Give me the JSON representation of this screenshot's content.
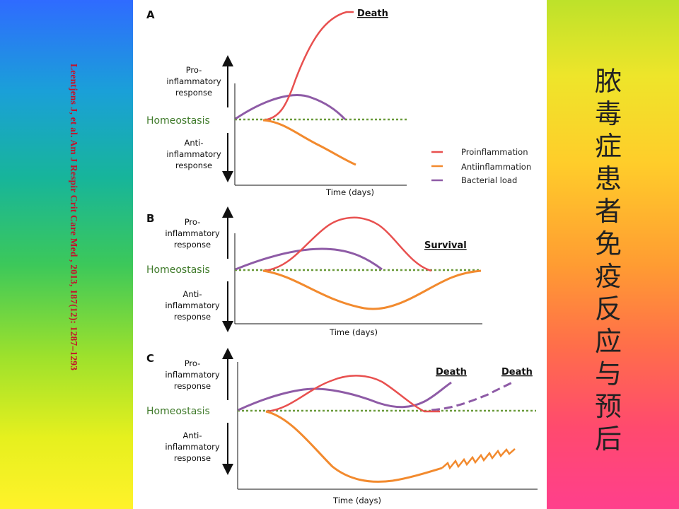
{
  "citation": "Leentjens J, et al. Am J Respir Crit Care Med , 2013, 187(12): 1287–1293",
  "title_cn": "脓\n毒\n症\n患\n者\n免\n疫\n反\n应\n与\n预\n后",
  "panels": {
    "A": {
      "label": "A",
      "pro": [
        "Pro-",
        "inflammatory",
        "response"
      ],
      "home": "Homeostasis",
      "anti": [
        "Anti-",
        "inflammatory",
        "response"
      ],
      "xaxis": "Time (days)",
      "outcome": "Death"
    },
    "B": {
      "label": "B",
      "pro": [
        "Pro-",
        "inflammatory",
        "response"
      ],
      "home": "Homeostasis",
      "anti": [
        "Anti-",
        "inflammatory",
        "response"
      ],
      "xaxis": "Time (days)",
      "outcome": "Survival"
    },
    "C": {
      "label": "C",
      "pro": [
        "Pro-",
        "inflammatory",
        "response"
      ],
      "home": "Homeostasis",
      "anti": [
        "Anti-",
        "inflammatory",
        "response"
      ],
      "xaxis": "Time (days)",
      "outcome1": "Death",
      "outcome2": "Death"
    }
  },
  "legend": {
    "items": [
      {
        "label": "Proinflammation",
        "color": "#e8504f"
      },
      {
        "label": "Antiinflammation",
        "color": "#f28a2e"
      },
      {
        "label": "Bacterial load",
        "color": "#8e5ba6"
      }
    ]
  },
  "colors": {
    "pro": "#e8504f",
    "anti": "#f28a2e",
    "bacteria": "#8e5ba6",
    "homeostasis": "#6a9a3a"
  }
}
